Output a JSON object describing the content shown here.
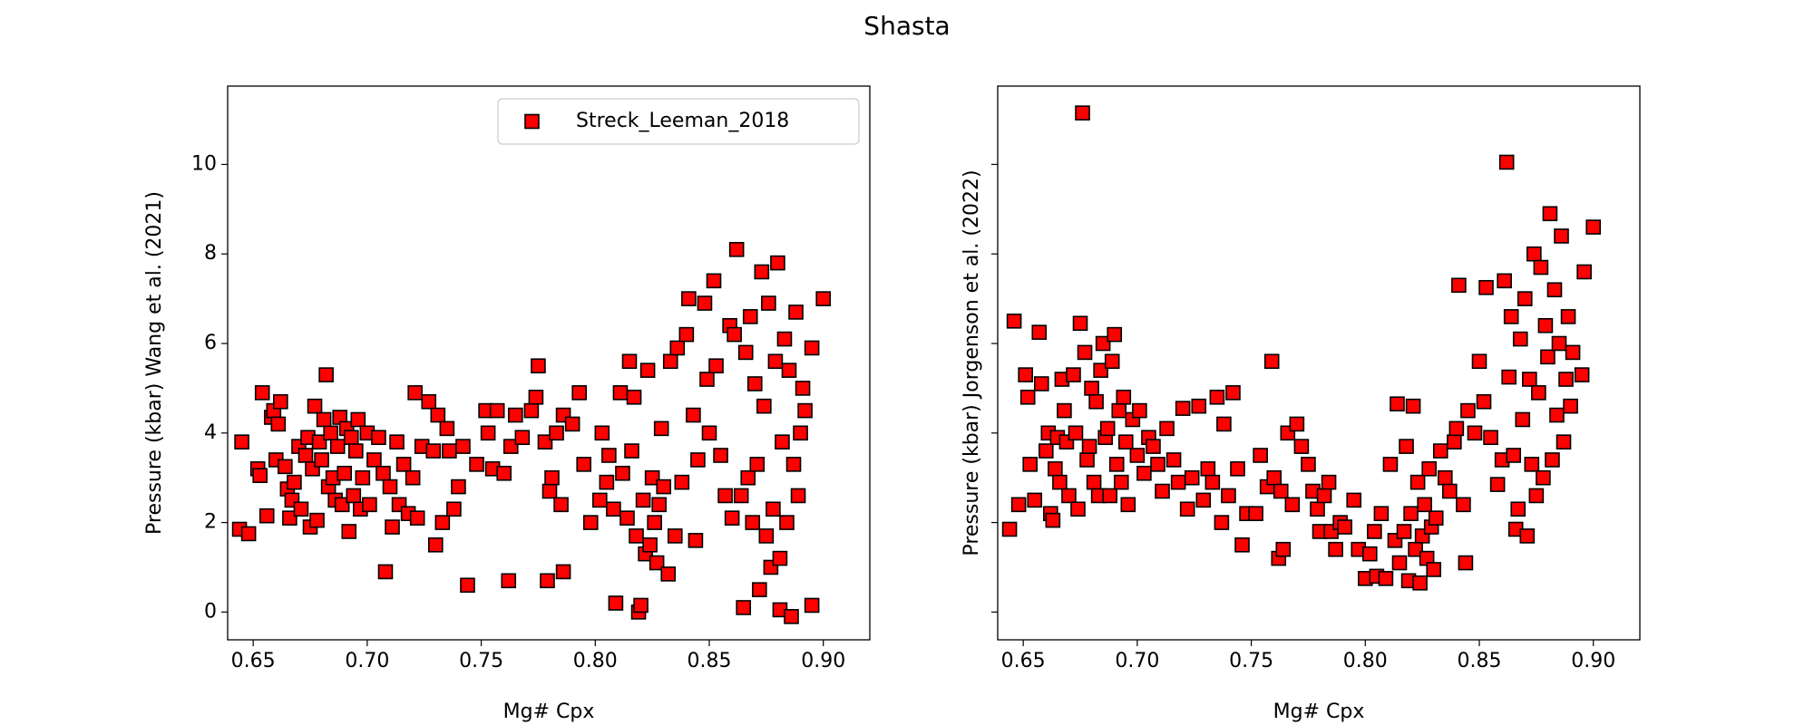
{
  "title": "Shasta",
  "chart_data": [
    {
      "type": "scatter",
      "xlabel": "Mg# Cpx",
      "ylabel": "Pressure (kbar) Wang et al. (2021)",
      "xlim": [
        0.6388,
        0.9204
      ],
      "ylim": [
        -0.62,
        11.75
      ],
      "xticks": [
        0.65,
        {
          "value": 0.7,
          "label": "0.70"
        },
        0.75,
        {
          "value": 0.8,
          "label": "0.80"
        },
        0.85,
        {
          "value": 0.9,
          "label": "0.90"
        }
      ],
      "yticks": [
        0,
        2,
        4,
        6,
        8,
        10
      ],
      "ytick_labels": true,
      "legend": "upper right",
      "series": [
        {
          "name": "Streck_Leeman_2018",
          "color": "red",
          "edgecolor": "black",
          "marker": "square",
          "x": [
            0.645,
            0.644,
            0.648,
            0.652,
            0.653,
            0.654,
            0.656,
            0.658,
            0.659,
            0.66,
            0.661,
            0.662,
            0.664,
            0.665,
            0.666,
            0.667,
            0.668,
            0.67,
            0.671,
            0.673,
            0.674,
            0.675,
            0.676,
            0.677,
            0.678,
            0.679,
            0.68,
            0.681,
            0.682,
            0.683,
            0.684,
            0.685,
            0.686,
            0.687,
            0.688,
            0.689,
            0.69,
            0.691,
            0.692,
            0.693,
            0.694,
            0.695,
            0.696,
            0.697,
            0.698,
            0.7,
            0.701,
            0.703,
            0.705,
            0.707,
            0.708,
            0.71,
            0.711,
            0.713,
            0.714,
            0.716,
            0.718,
            0.72,
            0.721,
            0.722,
            0.724,
            0.727,
            0.729,
            0.73,
            0.731,
            0.733,
            0.735,
            0.736,
            0.738,
            0.74,
            0.742,
            0.744,
            0.748,
            0.752,
            0.753,
            0.755,
            0.757,
            0.76,
            0.762,
            0.763,
            0.765,
            0.768,
            0.772,
            0.774,
            0.775,
            0.778,
            0.779,
            0.78,
            0.781,
            0.783,
            0.785,
            0.786,
            0.786,
            0.79,
            0.793,
            0.795,
            0.798,
            0.802,
            0.803,
            0.805,
            0.806,
            0.808,
            0.809,
            0.811,
            0.812,
            0.814,
            0.815,
            0.816,
            0.817,
            0.818,
            0.819,
            0.82,
            0.821,
            0.822,
            0.823,
            0.824,
            0.825,
            0.826,
            0.827,
            0.828,
            0.829,
            0.83,
            0.832,
            0.833,
            0.835,
            0.836,
            0.838,
            0.84,
            0.841,
            0.843,
            0.844,
            0.845,
            0.848,
            0.849,
            0.85,
            0.852,
            0.853,
            0.855,
            0.857,
            0.859,
            0.86,
            0.861,
            0.862,
            0.864,
            0.865,
            0.866,
            0.867,
            0.868,
            0.869,
            0.87,
            0.871,
            0.872,
            0.873,
            0.874,
            0.875,
            0.876,
            0.877,
            0.878,
            0.879,
            0.88,
            0.881,
            0.881,
            0.882,
            0.883,
            0.884,
            0.885,
            0.886,
            0.887,
            0.888,
            0.889,
            0.89,
            0.891,
            0.892,
            0.895,
            0.895,
            0.9
          ],
          "values": [
            3.8,
            1.85,
            1.75,
            3.2,
            3.05,
            4.9,
            2.15,
            4.35,
            4.5,
            3.4,
            4.2,
            4.7,
            3.25,
            2.75,
            2.1,
            2.5,
            2.9,
            3.7,
            2.3,
            3.5,
            3.9,
            1.9,
            3.2,
            4.6,
            2.05,
            3.8,
            3.4,
            4.3,
            5.3,
            2.8,
            4.0,
            3.0,
            2.5,
            3.7,
            4.35,
            2.4,
            3.1,
            4.1,
            1.8,
            3.9,
            2.6,
            3.6,
            4.3,
            2.3,
            3.0,
            4.0,
            2.4,
            3.4,
            3.9,
            3.1,
            0.9,
            2.8,
            1.9,
            3.8,
            2.4,
            3.3,
            2.2,
            3.0,
            4.9,
            2.1,
            3.7,
            4.7,
            3.6,
            1.5,
            4.4,
            2.0,
            4.1,
            3.6,
            2.3,
            2.8,
            3.7,
            0.6,
            3.3,
            4.5,
            4.0,
            3.2,
            4.5,
            3.1,
            0.7,
            3.7,
            4.4,
            3.9,
            4.5,
            4.8,
            5.5,
            3.8,
            0.7,
            2.7,
            3.0,
            4.0,
            2.4,
            0.9,
            4.4,
            4.2,
            4.9,
            3.3,
            2.0,
            2.5,
            4.0,
            2.9,
            3.5,
            2.3,
            0.2,
            4.9,
            3.1,
            2.1,
            5.6,
            3.6,
            4.8,
            1.7,
            0.0,
            0.15,
            2.5,
            1.3,
            5.4,
            1.5,
            3.0,
            2.0,
            1.1,
            2.4,
            4.1,
            2.8,
            0.85,
            5.6,
            1.7,
            5.9,
            2.9,
            6.2,
            7.0,
            4.4,
            1.6,
            3.4,
            6.9,
            5.2,
            4.0,
            7.4,
            5.5,
            3.5,
            2.6,
            6.4,
            2.1,
            6.2,
            8.1,
            2.6,
            0.1,
            5.8,
            3.0,
            6.6,
            2.0,
            5.1,
            3.3,
            0.5,
            7.6,
            4.6,
            1.7,
            6.9,
            1.0,
            2.3,
            5.6,
            7.8,
            1.2,
            0.05,
            3.8,
            6.1,
            2.0,
            5.4,
            -0.1,
            3.3,
            6.7,
            2.6,
            4.0,
            5.0,
            4.5,
            5.9,
            0.15,
            7.0
          ]
        }
      ]
    },
    {
      "type": "scatter",
      "xlabel": "Mg# Cpx",
      "ylabel": "Pressure (kbar) Jorgenson et al. (2022)",
      "xlim": [
        0.6388,
        0.9204
      ],
      "ylim": [
        -0.62,
        11.75
      ],
      "xticks": [
        0.65,
        {
          "value": 0.7,
          "label": "0.70"
        },
        0.75,
        {
          "value": 0.8,
          "label": "0.80"
        },
        0.85,
        {
          "value": 0.9,
          "label": "0.90"
        }
      ],
      "yticks": [
        0,
        2,
        4,
        6,
        8,
        10
      ],
      "ytick_labels": false,
      "series": [
        {
          "color": "red",
          "edgecolor": "black",
          "marker": "square",
          "x": [
            0.644,
            0.646,
            0.648,
            0.651,
            0.652,
            0.653,
            0.655,
            0.657,
            0.658,
            0.66,
            0.661,
            0.662,
            0.663,
            0.664,
            0.665,
            0.666,
            0.667,
            0.668,
            0.669,
            0.67,
            0.672,
            0.673,
            0.674,
            0.675,
            0.676,
            0.677,
            0.678,
            0.679,
            0.68,
            0.681,
            0.682,
            0.683,
            0.684,
            0.685,
            0.686,
            0.687,
            0.688,
            0.689,
            0.69,
            0.691,
            0.692,
            0.693,
            0.694,
            0.695,
            0.696,
            0.698,
            0.7,
            0.701,
            0.703,
            0.705,
            0.707,
            0.709,
            0.711,
            0.713,
            0.716,
            0.718,
            0.72,
            0.722,
            0.724,
            0.727,
            0.729,
            0.731,
            0.733,
            0.735,
            0.737,
            0.738,
            0.74,
            0.742,
            0.744,
            0.746,
            0.748,
            0.752,
            0.754,
            0.757,
            0.759,
            0.76,
            0.762,
            0.763,
            0.764,
            0.766,
            0.768,
            0.77,
            0.772,
            0.775,
            0.777,
            0.779,
            0.78,
            0.782,
            0.784,
            0.785,
            0.787,
            0.789,
            0.791,
            0.795,
            0.797,
            0.8,
            0.802,
            0.804,
            0.805,
            0.807,
            0.809,
            0.811,
            0.813,
            0.814,
            0.815,
            0.817,
            0.818,
            0.819,
            0.82,
            0.821,
            0.822,
            0.823,
            0.824,
            0.825,
            0.826,
            0.827,
            0.828,
            0.829,
            0.83,
            0.831,
            0.833,
            0.835,
            0.837,
            0.839,
            0.84,
            0.841,
            0.843,
            0.844,
            0.845,
            0.848,
            0.85,
            0.852,
            0.853,
            0.855,
            0.858,
            0.86,
            0.861,
            0.862,
            0.863,
            0.864,
            0.865,
            0.866,
            0.867,
            0.868,
            0.869,
            0.87,
            0.871,
            0.872,
            0.873,
            0.874,
            0.875,
            0.876,
            0.877,
            0.878,
            0.879,
            0.88,
            0.881,
            0.882,
            0.883,
            0.884,
            0.885,
            0.886,
            0.887,
            0.888,
            0.889,
            0.89,
            0.891,
            0.895,
            0.896,
            0.9
          ],
          "values": [
            1.85,
            6.5,
            2.4,
            5.3,
            4.8,
            3.3,
            2.5,
            6.25,
            5.1,
            3.6,
            4.0,
            2.2,
            2.05,
            3.2,
            3.9,
            2.9,
            5.2,
            4.5,
            3.8,
            2.6,
            5.3,
            4.0,
            2.3,
            6.45,
            11.15,
            5.8,
            3.4,
            3.7,
            5.0,
            2.9,
            4.7,
            2.6,
            5.4,
            6.0,
            3.9,
            4.1,
            2.6,
            5.6,
            6.2,
            3.3,
            4.5,
            2.9,
            4.8,
            3.8,
            2.4,
            4.3,
            3.5,
            4.5,
            3.1,
            3.9,
            3.7,
            3.3,
            2.7,
            4.1,
            3.4,
            2.9,
            4.55,
            2.3,
            3.0,
            4.6,
            2.5,
            3.2,
            2.9,
            4.8,
            2.0,
            4.2,
            2.6,
            4.9,
            3.2,
            1.5,
            2.2,
            2.2,
            3.5,
            2.8,
            5.6,
            3.0,
            1.2,
            2.7,
            1.4,
            4.0,
            2.4,
            4.2,
            3.7,
            3.3,
            2.7,
            2.3,
            1.8,
            2.6,
            2.9,
            1.8,
            1.4,
            2.0,
            1.9,
            2.5,
            1.4,
            0.75,
            1.3,
            1.8,
            0.8,
            2.2,
            0.75,
            3.3,
            1.6,
            4.65,
            1.1,
            1.8,
            3.7,
            0.7,
            2.2,
            4.6,
            1.4,
            2.9,
            0.65,
            1.7,
            2.4,
            1.2,
            3.2,
            1.9,
            0.95,
            2.1,
            3.6,
            3.0,
            2.7,
            3.8,
            4.1,
            7.3,
            2.4,
            1.1,
            4.5,
            4.0,
            5.6,
            4.7,
            7.25,
            3.9,
            2.85,
            3.4,
            7.4,
            10.05,
            5.25,
            6.6,
            3.5,
            1.85,
            2.3,
            6.1,
            4.3,
            7.0,
            1.7,
            5.2,
            3.3,
            8.0,
            2.6,
            4.9,
            7.7,
            3.0,
            6.4,
            5.7,
            8.9,
            3.4,
            7.2,
            4.4,
            6.0,
            8.4,
            3.8,
            5.2,
            6.6,
            4.6,
            5.8,
            5.3,
            7.6,
            8.6
          ]
        }
      ]
    }
  ]
}
